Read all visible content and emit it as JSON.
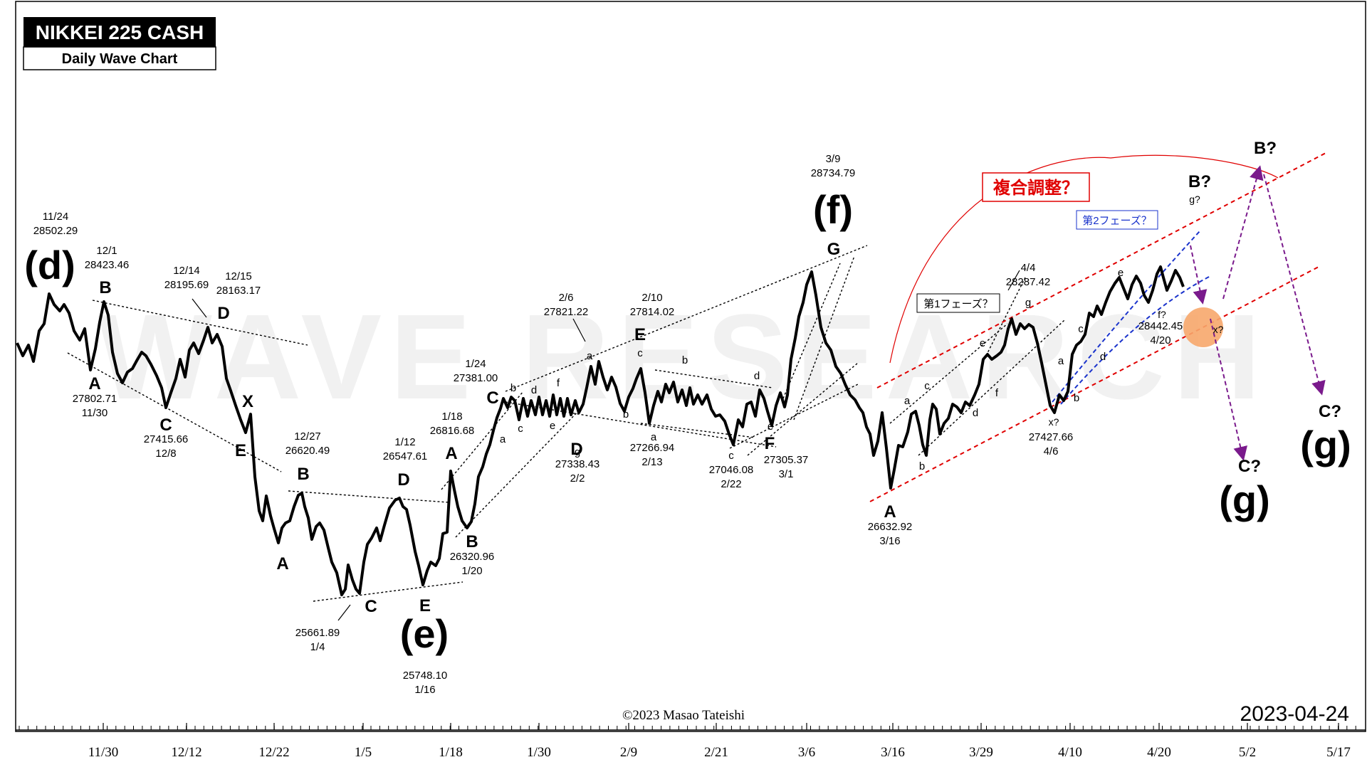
{
  "title_box": {
    "title": "NIKKEI 225 CASH",
    "subtitle": "Daily Wave Chart"
  },
  "watermark": "WAVE RESEARCH",
  "copyright": "©2023 Masao Tateishi",
  "date_stamp": "2023-04-24",
  "colors": {
    "price_line": "#000000",
    "red_channel": "#e00000",
    "blue_channel": "#1a33cc",
    "purple_arrows": "#7a1a8c",
    "target_circle": "#f7a76b"
  },
  "chart_data": {
    "type": "line",
    "title": "NIKKEI 225 CASH",
    "subtitle": "Daily Wave Chart",
    "xlabel": "",
    "ylabel": "",
    "x_tick_labels": [
      "11/30",
      "12/12",
      "12/22",
      "1/5",
      "1/18",
      "1/30",
      "2/9",
      "2/21",
      "3/6",
      "3/16",
      "3/29",
      "4/10",
      "4/20",
      "5/2",
      "5/17"
    ],
    "price_annotations": [
      {
        "date": "11/24",
        "value": "28502.29"
      },
      {
        "date": "12/1",
        "value": "28423.46"
      },
      {
        "date": "11/30",
        "value": "27802.71"
      },
      {
        "date": "12/8",
        "value": "27415.66"
      },
      {
        "date": "12/14",
        "value": "28195.69"
      },
      {
        "date": "12/15",
        "value": "28163.17"
      },
      {
        "date": "12/27",
        "value": "26620.49"
      },
      {
        "date": "1/4",
        "value": "25661.89"
      },
      {
        "date": "1/12",
        "value": "26547.61"
      },
      {
        "date": "1/16",
        "value": "25748.10"
      },
      {
        "date": "1/18",
        "value": "26816.68"
      },
      {
        "date": "1/20",
        "value": "26320.96"
      },
      {
        "date": "1/24",
        "value": "27381.00"
      },
      {
        "date": "2/2",
        "value": "27338.43"
      },
      {
        "date": "2/6",
        "value": "27821.22"
      },
      {
        "date": "2/10",
        "value": "27814.02"
      },
      {
        "date": "2/13",
        "value": "27266.94"
      },
      {
        "date": "2/22",
        "value": "27046.08"
      },
      {
        "date": "3/1",
        "value": "27305.37"
      },
      {
        "date": "3/9",
        "value": "28734.79"
      },
      {
        "date": "3/16",
        "value": "26632.92"
      },
      {
        "date": "4/4",
        "value": "28287.42"
      },
      {
        "date": "4/6",
        "value": "27427.66"
      },
      {
        "date": "4/20",
        "value": "28442.45"
      }
    ],
    "wave_labels": {
      "major": [
        "(d)",
        "(e)",
        "(f)",
        "(g)",
        "(g)"
      ],
      "corrective": [
        "A",
        "B",
        "C",
        "D",
        "E",
        "X",
        "F",
        "G"
      ],
      "minor": [
        "a",
        "b",
        "c",
        "d",
        "e",
        "f",
        "g"
      ],
      "projections": [
        "B?",
        "B?",
        "C?",
        "C?",
        "x?",
        "x?",
        "f?",
        "g?"
      ]
    },
    "callouts": {
      "complex_correction": "複合調整？",
      "phase1": "第1フェーズ？",
      "phase2": "第2フェーズ？"
    },
    "grid": false,
    "legend": "none"
  }
}
